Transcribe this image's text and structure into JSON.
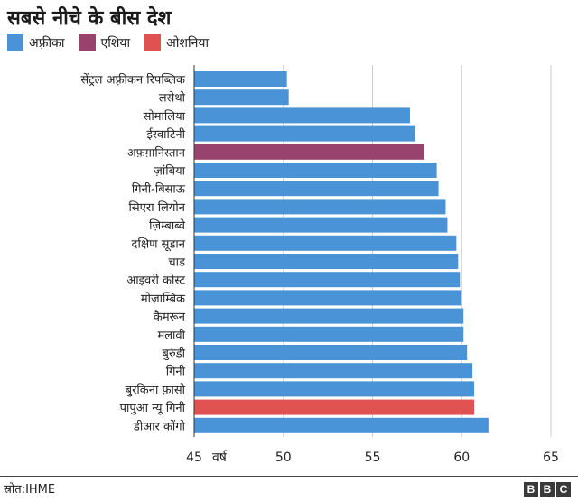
{
  "title": "सबसे नीचे के बीस देश",
  "legend": [
    {
      "label": "अफ़्रीका",
      "color": "#4a93d6"
    },
    {
      "label": "एशिया",
      "color": "#97436e"
    },
    {
      "label": "ओशनिया",
      "color": "#e05252"
    }
  ],
  "chart_data": {
    "type": "bar",
    "orientation": "horizontal",
    "xlabel": "वर्ष",
    "xlim": [
      45,
      65
    ],
    "ticks": [
      45,
      50,
      55,
      60,
      65
    ],
    "grid": true,
    "categories": [
      "सेंट्रल अफ़्रीकन रिपब्लिक",
      "लसेथो",
      "सोमालिया",
      "ईस्वाटिनी",
      "अफ़ग़ानिस्तान",
      "ज़ांबिया",
      "गिनी-बिसाऊ",
      "सिएरा लियोन",
      "ज़िम्बाब्वे",
      "दक्षिण सूडान",
      "चाड",
      "आइवरी कोस्ट",
      "मोज़ाम्बिक",
      "कैमरून",
      "मलावी",
      "बुरुंडी",
      "गिनी",
      "बुरकिना फ़ासो",
      "पापुआ न्यू गिनी",
      "डीआर कोंगो"
    ],
    "values": [
      50.2,
      50.3,
      57.1,
      57.4,
      57.9,
      58.6,
      58.7,
      59.1,
      59.2,
      59.7,
      59.8,
      59.9,
      60.0,
      60.1,
      60.1,
      60.3,
      60.6,
      60.7,
      60.7,
      61.5
    ],
    "regions": [
      "अफ़्रीका",
      "अफ़्रीका",
      "अफ़्रीका",
      "अफ़्रीका",
      "एशिया",
      "अफ़्रीका",
      "अफ़्रीका",
      "अफ़्रीका",
      "अफ़्रीका",
      "अफ़्रीका",
      "अफ़्रीका",
      "अफ़्रीका",
      "अफ़्रीका",
      "अफ़्रीका",
      "अफ़्रीका",
      "अफ़्रीका",
      "अफ़्रीका",
      "अफ़्रीका",
      "ओशनिया",
      "अफ़्रीका"
    ]
  },
  "footer": {
    "source": "स्रोत:IHME",
    "logo_letters": [
      "B",
      "B",
      "C"
    ]
  }
}
